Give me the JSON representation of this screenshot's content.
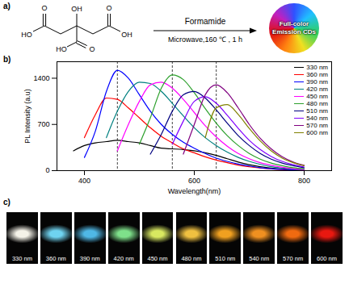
{
  "panel_a": {
    "label": "a)",
    "reactant_atoms": [
      "OH",
      "HO",
      "O",
      "O",
      "OH",
      "HO",
      "O"
    ],
    "reagent": "Formamide",
    "conditions": "Microwave,160 ℃ , 1 h",
    "product": [
      "Full-color",
      "Emission CDs"
    ]
  },
  "chart_data": {
    "type": "line",
    "panel_label": "b)",
    "x_label": "Wavelength(nm)",
    "y_label": "PL Intensity (a.u)",
    "x": [
      380,
      400,
      420,
      440,
      460,
      480,
      500,
      520,
      540,
      560,
      580,
      600,
      620,
      640,
      660,
      680,
      700,
      720,
      740,
      760,
      780,
      800
    ],
    "series": [
      {
        "name": "330 nm",
        "color": "#000000",
        "values": [
          300,
          380,
          420,
          440,
          460,
          440,
          420,
          380,
          340,
          330,
          320,
          300,
          270,
          230,
          180,
          130,
          90,
          60,
          40,
          25,
          15,
          10
        ]
      },
      {
        "name": "360 nm",
        "color": "#ff0000",
        "values": [
          null,
          500,
          850,
          1100,
          1080,
          950,
          800,
          650,
          520,
          420,
          330,
          270,
          210,
          160,
          120,
          85,
          60,
          40,
          25,
          15,
          10,
          5
        ]
      },
      {
        "name": "390 nm",
        "color": "#0000ff",
        "values": [
          null,
          200,
          600,
          1200,
          1520,
          1400,
          1150,
          900,
          700,
          550,
          430,
          340,
          260,
          190,
          140,
          100,
          70,
          45,
          30,
          20,
          12,
          8
        ]
      },
      {
        "name": "420 nm",
        "color": "#008080",
        "values": [
          null,
          null,
          null,
          500,
          900,
          1200,
          1340,
          1320,
          1200,
          1020,
          830,
          650,
          500,
          380,
          280,
          200,
          140,
          95,
          60,
          40,
          25,
          15
        ]
      },
      {
        "name": "450 nm",
        "color": "#ff00ff",
        "values": [
          null,
          null,
          null,
          null,
          300,
          700,
          1050,
          1300,
          1340,
          1250,
          1080,
          880,
          680,
          510,
          370,
          260,
          180,
          120,
          80,
          50,
          30,
          18
        ]
      },
      {
        "name": "480 nm",
        "color": "#2ca02c",
        "values": [
          null,
          null,
          null,
          null,
          null,
          null,
          400,
          800,
          1250,
          1450,
          1380,
          1180,
          940,
          720,
          530,
          380,
          260,
          175,
          115,
          75,
          45,
          28
        ]
      },
      {
        "name": "510 nm",
        "color": "#000080",
        "values": [
          null,
          null,
          null,
          null,
          null,
          null,
          null,
          250,
          550,
          900,
          1150,
          1200,
          1100,
          920,
          720,
          530,
          380,
          260,
          175,
          115,
          75,
          45
        ]
      },
      {
        "name": "540 nm",
        "color": "#8000ff",
        "values": [
          null,
          null,
          null,
          null,
          null,
          null,
          null,
          null,
          null,
          400,
          750,
          1050,
          1120,
          1020,
          840,
          640,
          460,
          320,
          215,
          140,
          90,
          55
        ]
      },
      {
        "name": "570 nm",
        "color": "#800080",
        "values": [
          null,
          null,
          null,
          null,
          null,
          null,
          null,
          null,
          null,
          null,
          250,
          700,
          1150,
          1300,
          1180,
          950,
          700,
          490,
          330,
          210,
          130,
          80
        ]
      },
      {
        "name": "600 nm",
        "color": "#808000",
        "values": [
          null,
          null,
          null,
          null,
          null,
          null,
          null,
          null,
          null,
          null,
          null,
          null,
          500,
          950,
          1000,
          850,
          640,
          450,
          300,
          190,
          120,
          75
        ]
      }
    ],
    "xlim": [
      350,
      850
    ],
    "ylim": [
      0,
      1650
    ],
    "xticks": [
      400,
      600,
      800
    ],
    "yticks": [
      0,
      700,
      1400
    ],
    "vlines": [
      460,
      560,
      640
    ],
    "legend": "top-right"
  },
  "panel_c": {
    "label": "c)",
    "images": [
      "330 nm",
      "360 nm",
      "390 nm",
      "420 nm",
      "450 nm",
      "480 nm",
      "510 nm",
      "540 nm",
      "570 nm",
      "600 nm"
    ],
    "colors": [
      "#f4f2e8",
      "#6fd3f0",
      "#4fb8e6",
      "#7ee08a",
      "#d8e860",
      "#f0c040",
      "#f0a020",
      "#f09020",
      "#f06a10",
      "#e81810"
    ]
  }
}
